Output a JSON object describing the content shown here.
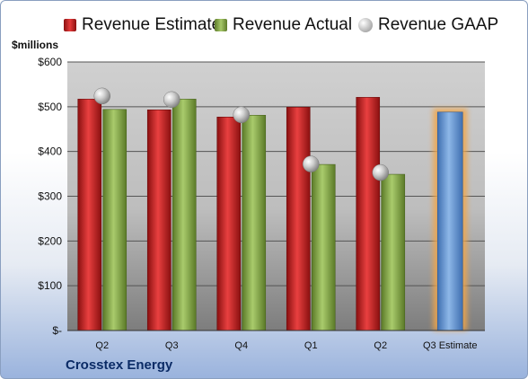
{
  "chart_data": {
    "type": "bar",
    "ylabel": "$millions",
    "ylim": [
      0,
      600
    ],
    "yticks": [
      {
        "value": 600,
        "label": "$600"
      },
      {
        "value": 500,
        "label": "$500"
      },
      {
        "value": 400,
        "label": "$400"
      },
      {
        "value": 300,
        "label": "$300"
      },
      {
        "value": 200,
        "label": "$200"
      },
      {
        "value": 100,
        "label": "$100"
      },
      {
        "value": 0,
        "label": "$-"
      }
    ],
    "categories": [
      "Q2",
      "Q3",
      "Q4",
      "Q1",
      "Q2",
      "Q3 Estimate"
    ],
    "series": [
      {
        "name": "Revenue Estimate",
        "type": "bar",
        "color": "#d42a2a",
        "values": [
          517,
          493,
          477,
          499,
          521,
          null
        ]
      },
      {
        "name": "Revenue Actual",
        "type": "bar",
        "color": "#8fb04f",
        "values": [
          494,
          517,
          481,
          371,
          349,
          null
        ]
      },
      {
        "name": "Revenue GAAP",
        "type": "point",
        "color": "#b8b8b8",
        "values": [
          524,
          516,
          482,
          372,
          353,
          null
        ]
      },
      {
        "name": "Q3 Estimate",
        "type": "bar",
        "color": "#6d9bd6",
        "highlight": "#f0a54a",
        "values": [
          null,
          null,
          null,
          null,
          null,
          488
        ]
      }
    ],
    "grid": true,
    "legend": "top"
  },
  "footer": {
    "company": "Crosstex Energy"
  }
}
